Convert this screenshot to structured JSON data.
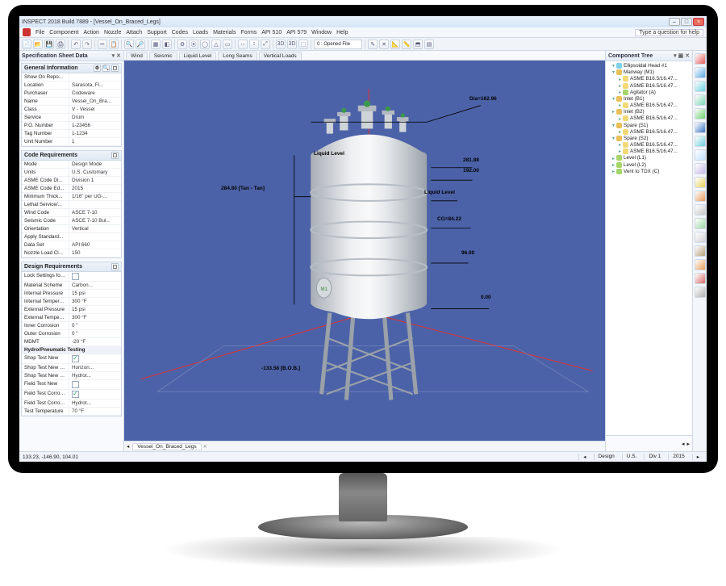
{
  "window": {
    "title": "INSPECT 2018 Build 7889 - [Vessel_On_Braced_Legs]",
    "help_placeholder": "Type a question for help"
  },
  "menu": [
    "File",
    "Component",
    "Action",
    "Nozzle",
    "Attach",
    "Support",
    "Codes",
    "Loads",
    "Materials",
    "Forms",
    "API 510",
    "API 579",
    "Window",
    "Help"
  ],
  "left_panel_title": "Specification Sheet Data",
  "local_tabs": [
    "Wind",
    "Seismic",
    "Liquid Level",
    "Long Seams",
    "Vertical Loads"
  ],
  "general_info": {
    "title": "General Information",
    "rows": [
      [
        "Show On Repo...",
        ""
      ],
      [
        "Location",
        "Sarasota, Fl..."
      ],
      [
        "Purchaser",
        "Codeware"
      ],
      [
        "Name",
        "Vessel_On_Bra..."
      ],
      [
        "Class",
        "V - Vessel"
      ],
      [
        "Service",
        "Drum"
      ],
      [
        "P.O. Number",
        "1-23456"
      ],
      [
        "Tag Number",
        "1-1234"
      ],
      [
        "Unit Number",
        "1"
      ]
    ]
  },
  "code_req": {
    "title": "Code Requirements",
    "rows": [
      [
        "Mode",
        "Design Mode"
      ],
      [
        "Units",
        "U.S. Customary"
      ],
      [
        "ASME Code Di...",
        "Division 1"
      ],
      [
        "ASME Code Ed...",
        "2015"
      ],
      [
        "Minimum Thick...",
        "1/16\" per UG-..."
      ],
      [
        "Lethal Service/...",
        ""
      ],
      [
        "Wind Code",
        "ASCE 7-10"
      ],
      [
        "Seismic Code",
        "ASCE 7-10 Bui..."
      ],
      [
        "Orientation",
        "Vertical"
      ],
      [
        "Apply Standard...",
        ""
      ],
      [
        "Data Set",
        "API 660"
      ],
      [
        "Nozzle Load Cl...",
        "150"
      ]
    ]
  },
  "design_req": {
    "title": "Design Requirements",
    "rows": [
      [
        "Lock Settings for Indivi...",
        "chk"
      ],
      [
        "Material Scheme",
        "Carbon..."
      ],
      [
        "Internal Pressure",
        "15 psi"
      ],
      [
        "Internal Temperature",
        "300 °F"
      ],
      [
        "External Pressure",
        "15 psi"
      ],
      [
        "External Temperature",
        "300 °F"
      ],
      [
        "Inner Corrosion",
        "0 \""
      ],
      [
        "Outer Corrosion",
        "0 \""
      ],
      [
        "MDMT",
        "-20 °F"
      ],
      [
        "Hydro/Pneumatic Testing",
        "hdr"
      ],
      [
        "Shop Test New",
        "chk_on"
      ],
      [
        "Shop Test New Ori...",
        "Horizon..."
      ],
      [
        "Shop Test New Te...",
        "Hydrot..."
      ],
      [
        "Field Test New",
        "chk"
      ],
      [
        "Field Test Corroded",
        "chk_on"
      ],
      [
        "Field Test Corroded...",
        "Hydrot..."
      ],
      [
        "Test Temperature",
        "70 °F"
      ]
    ]
  },
  "tree": {
    "title": "Component Tree",
    "nodes": [
      {
        "lvl": 1,
        "open": true,
        "icon": "#7bd1e8",
        "label": "Ellipsoidal Head #1"
      },
      {
        "lvl": 1,
        "open": true,
        "icon": "#e8c05a",
        "label": "Manway (M1)"
      },
      {
        "lvl": 2,
        "icon": "#f2d977",
        "label": "ASME B16.5/16.47..."
      },
      {
        "lvl": 2,
        "icon": "#f2d977",
        "label": "ASME B16.5/16.47..."
      },
      {
        "lvl": 2,
        "icon": "#a6d66a",
        "label": "Agitator (A)"
      },
      {
        "lvl": 1,
        "open": true,
        "icon": "#e8c05a",
        "label": "Inlet (B1)"
      },
      {
        "lvl": 2,
        "icon": "#f2d977",
        "label": "ASME B16.5/16.47..."
      },
      {
        "lvl": 1,
        "icon": "#e8c05a",
        "label": "Inlet (B2)"
      },
      {
        "lvl": 2,
        "icon": "#f2d977",
        "label": "ASME B16.5/16.47..."
      },
      {
        "lvl": 1,
        "open": true,
        "icon": "#e8c05a",
        "label": "Spare (S1)"
      },
      {
        "lvl": 2,
        "icon": "#f2d977",
        "label": "ASME B16.5/16.47..."
      },
      {
        "lvl": 1,
        "open": true,
        "icon": "#e8c05a",
        "label": "Spare (S2)"
      },
      {
        "lvl": 2,
        "icon": "#f2d977",
        "label": "ASME B16.5/16.47..."
      },
      {
        "lvl": 2,
        "icon": "#f2d977",
        "label": "ASME B16.5/16.47..."
      },
      {
        "lvl": 1,
        "icon": "#a6d66a",
        "label": "Level (L1)"
      },
      {
        "lvl": 1,
        "icon": "#a6d66a",
        "label": "Level (L2)"
      },
      {
        "lvl": 1,
        "icon": "#a6d66a",
        "label": "Vent to TDX (C)"
      }
    ]
  },
  "rail_colors": [
    "#e65a5a",
    "#5aa8e6",
    "#6bd1e0",
    "#7dd6b3",
    "#6ecf6e",
    "#3c78c4",
    "#6bd1e0",
    "#bfe0ff",
    "#c8b8e8",
    "#e6d25a",
    "#e69a5a",
    "#c8c8c8",
    "#9ad6a0",
    "#d0d0d0",
    "#b8a078",
    "#e6a05a",
    "#d86a6a",
    "#b0b0b0"
  ],
  "viewport": {
    "bg": "#4c62a8",
    "vessel_body": "#d9dde1",
    "vessel_highlight": "#f2f4f6",
    "annotations": {
      "dia": "Dia=162.96",
      "top": "284.80 [Tan - Tan]",
      "liquid1": "Liquid Level",
      "liquid2": "Liquid Level",
      "h1": "281.88",
      "h2": "192.00",
      "cg": "CG=84.22",
      "h3": "96.00",
      "h4": "0.00",
      "bottom": "-133.58 [B.O.B.]"
    }
  },
  "viewtab": "Vessel_On_Braced_Legs",
  "status": {
    "coords": "133.23, -146.90, 104.01",
    "right": [
      "Design",
      "U.S.",
      "Div 1",
      "2015"
    ]
  },
  "toolbar2_fields": {
    "opened": "0 : Opened File"
  }
}
